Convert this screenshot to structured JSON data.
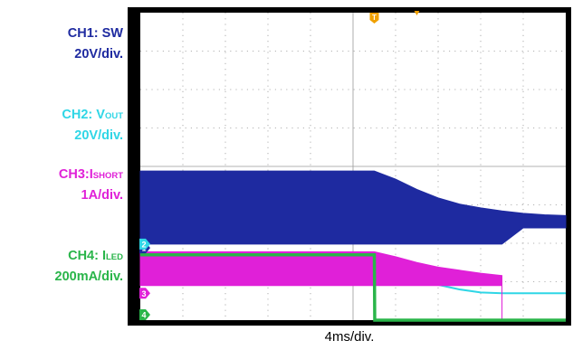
{
  "channels": [
    {
      "id": "CH1",
      "name_pre": "CH1: SW",
      "name_sub": "",
      "scale": "20V/div.",
      "color": "#1e2aa0",
      "marker": "1"
    },
    {
      "id": "CH2",
      "name_pre": "CH2: V",
      "name_sub": "OUT",
      "scale": "20V/div.",
      "color": "#2fd6e6",
      "marker": "2"
    },
    {
      "id": "CH3",
      "name_pre": "CH3:I",
      "name_sub": "SHORT",
      "scale": "1A/div.",
      "color": "#e020d8",
      "marker": "3"
    },
    {
      "id": "CH4",
      "name_pre": "CH4: I",
      "name_sub": "LED",
      "scale": "200mA/div.",
      "color": "#2ab54a",
      "marker": "4"
    }
  ],
  "trigger_marker": "T",
  "chart_data": {
    "type": "line",
    "xlabel": "4ms/div.",
    "x_divisions": 10,
    "y_divisions": 8,
    "grid": true,
    "series": [
      {
        "name": "CH1: SW",
        "x": [
          0,
          5.5,
          6,
          6.5,
          7,
          7.5,
          8,
          8.5,
          9,
          9.5,
          10
        ],
        "y": [
          3.88,
          3.88,
          3.67,
          3.4,
          3.18,
          3.02,
          2.92,
          2.84,
          2.78,
          2.74,
          2.72
        ],
        "y_low": [
          1.98,
          1.98,
          1.98,
          1.98,
          1.98,
          1.98,
          1.98,
          1.98,
          2.4,
          2.4,
          2.4
        ]
      },
      {
        "name": "CH2: VOUT",
        "x": [
          0,
          5.5,
          6,
          6.5,
          7,
          7.5,
          8,
          8.5,
          9,
          9.5,
          10
        ],
        "y": [
          1.6,
          1.6,
          1.35,
          1.1,
          0.92,
          0.8,
          0.72,
          0.7,
          0.7,
          0.7,
          0.7
        ]
      },
      {
        "name": "CH3:ISHORT",
        "x": [
          0,
          5.5,
          6,
          6.5,
          7,
          7.5,
          8,
          8.5,
          8.501,
          10
        ],
        "y": [
          1.78,
          1.78,
          1.65,
          1.5,
          1.38,
          1.3,
          1.22,
          1.16,
          0.02,
          0.02
        ],
        "y_low": [
          0.9,
          0.9,
          0.9,
          0.9,
          0.9,
          0.9,
          0.9,
          0.9,
          0.02,
          0.02
        ]
      },
      {
        "name": "CH4: ILED",
        "x": [
          0,
          5.5,
          5.51,
          10
        ],
        "y": [
          1.7,
          1.7,
          0.0,
          0.0
        ]
      }
    ]
  }
}
